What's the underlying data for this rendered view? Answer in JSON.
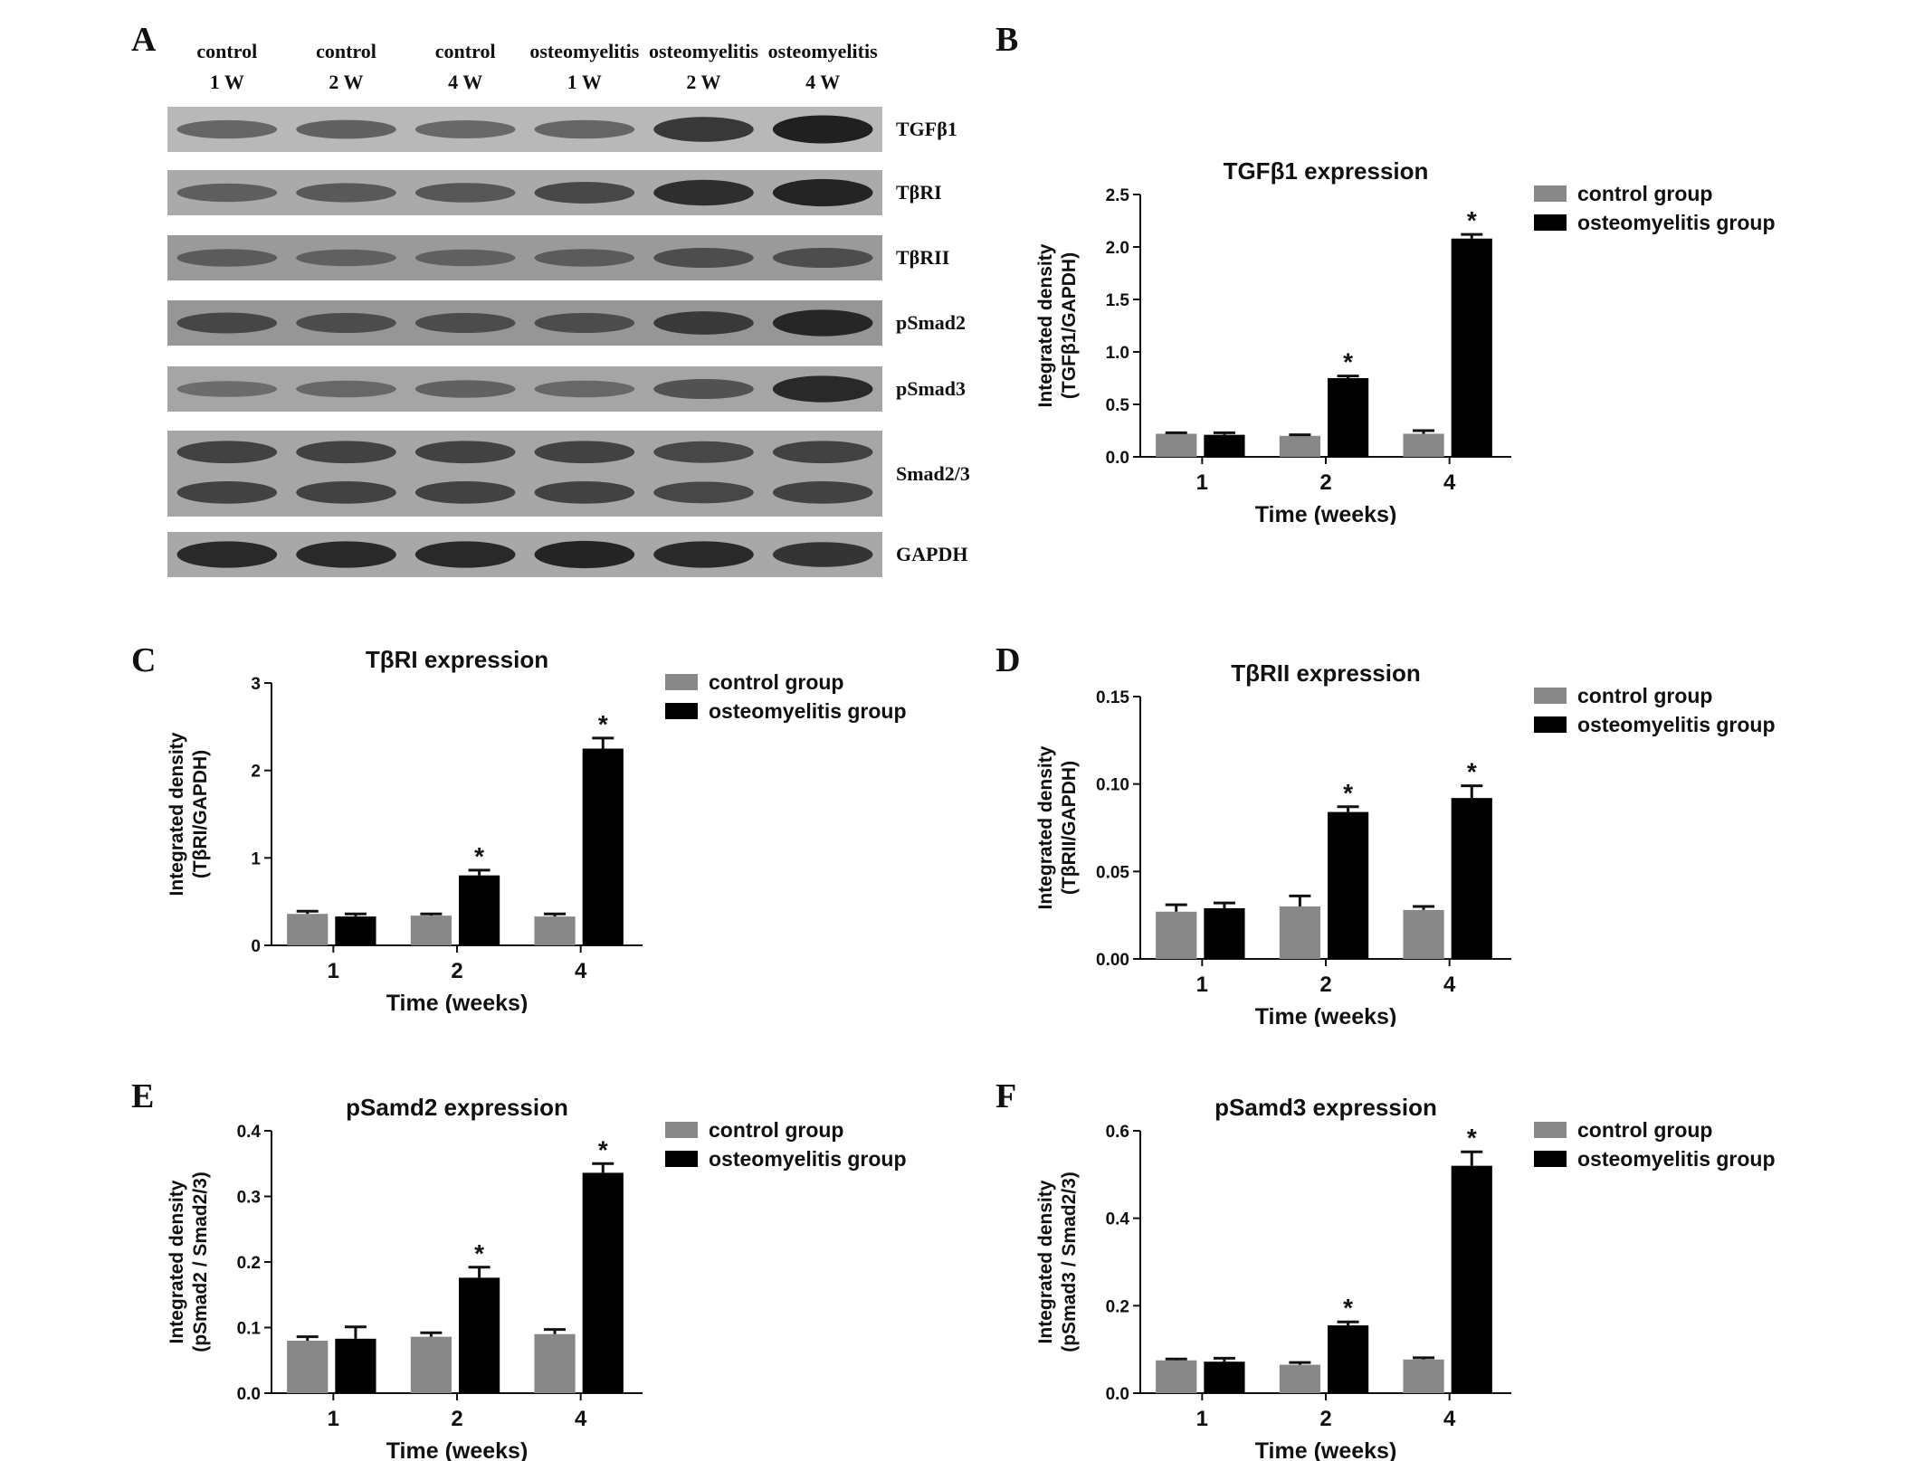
{
  "panels": {
    "a": "A",
    "b": "B",
    "c": "C",
    "d": "D",
    "e": "E",
    "f": "F"
  },
  "blot": {
    "lanes": [
      {
        "line1": "control",
        "line2": "1 W"
      },
      {
        "line1": "control",
        "line2": "2 W"
      },
      {
        "line1": "control",
        "line2": "4 W"
      },
      {
        "line1": "osteomyelitis",
        "line2": "1 W"
      },
      {
        "line1": "osteomyelitis",
        "line2": "2 W"
      },
      {
        "line1": "osteomyelitis",
        "line2": "4 W"
      }
    ],
    "bands": [
      {
        "label": "TGFβ1",
        "bg": "#b8b8b8",
        "intensities": [
          0.35,
          0.38,
          0.33,
          0.36,
          0.75,
          0.95
        ],
        "rows": 1
      },
      {
        "label": "TβRI",
        "bg": "#aaaaaa",
        "intensities": [
          0.35,
          0.4,
          0.42,
          0.55,
          0.8,
          0.9
        ],
        "rows": 1
      },
      {
        "label": "TβRII",
        "bg": "#9a9a9a",
        "intensities": [
          0.3,
          0.25,
          0.25,
          0.3,
          0.45,
          0.45
        ],
        "rows": 1
      },
      {
        "label": "pSmad2",
        "bg": "#969696",
        "intensities": [
          0.5,
          0.45,
          0.45,
          0.45,
          0.65,
          0.85
        ],
        "rows": 1
      },
      {
        "label": "pSmad3",
        "bg": "#a5a5a5",
        "intensities": [
          0.2,
          0.25,
          0.3,
          0.25,
          0.45,
          0.85
        ],
        "rows": 1
      },
      {
        "label": "Smad2/3",
        "bg": "#a6a6a6",
        "intensities": [
          0.6,
          0.6,
          0.6,
          0.6,
          0.55,
          0.6
        ],
        "rows": 2
      },
      {
        "label": "GAPDH",
        "bg": "#a8a8a8",
        "intensities": [
          0.85,
          0.85,
          0.85,
          0.9,
          0.85,
          0.75
        ],
        "rows": 1
      }
    ]
  },
  "colors": {
    "control": "#888888",
    "osteomyelitis": "#000000"
  },
  "chart_data": [
    {
      "id": "B",
      "type": "bar",
      "title": "TGFβ1 expression",
      "xlabel": "Time (weeks)",
      "ylabel_line1": "Integrated density",
      "ylabel_line2": "(TGFβ1/GAPDH)",
      "categories": [
        "1",
        "2",
        "4"
      ],
      "ylim": [
        0,
        2.5
      ],
      "yticks": [
        "0.0",
        "0.5",
        "1.0",
        "1.5",
        "2.0",
        "2.5"
      ],
      "series": [
        {
          "name": "control group",
          "values": [
            0.22,
            0.2,
            0.22
          ],
          "errors": [
            0.01,
            0.01,
            0.03
          ]
        },
        {
          "name": "osteomyelitis group",
          "values": [
            0.21,
            0.75,
            2.08
          ],
          "errors": [
            0.02,
            0.02,
            0.04
          ]
        }
      ],
      "significance": [
        "",
        "*",
        "*"
      ],
      "legend": "top-right"
    },
    {
      "id": "C",
      "type": "bar",
      "title": "TβRI expression",
      "xlabel": "Time (weeks)",
      "ylabel_line1": "Integrated density",
      "ylabel_line2": "(TβRI/GAPDH)",
      "categories": [
        "1",
        "2",
        "4"
      ],
      "ylim": [
        0,
        3
      ],
      "yticks": [
        "0",
        "1",
        "2",
        "3"
      ],
      "series": [
        {
          "name": "control group",
          "values": [
            0.36,
            0.34,
            0.33
          ],
          "errors": [
            0.03,
            0.02,
            0.03
          ]
        },
        {
          "name": "osteomyelitis group",
          "values": [
            0.33,
            0.8,
            2.25
          ],
          "errors": [
            0.03,
            0.06,
            0.12
          ]
        }
      ],
      "significance": [
        "",
        "*",
        "*"
      ],
      "legend": "top-right"
    },
    {
      "id": "D",
      "type": "bar",
      "title": "TβRII expression",
      "xlabel": "Time (weeks)",
      "ylabel_line1": "Integrated density",
      "ylabel_line2": "(TβRII/GAPDH)",
      "categories": [
        "1",
        "2",
        "4"
      ],
      "ylim": [
        0,
        0.15
      ],
      "yticks": [
        "0.00",
        "0.05",
        "0.10",
        "0.15"
      ],
      "series": [
        {
          "name": "control group",
          "values": [
            0.027,
            0.03,
            0.028
          ],
          "errors": [
            0.004,
            0.006,
            0.002
          ]
        },
        {
          "name": "osteomyelitis group",
          "values": [
            0.029,
            0.084,
            0.092
          ],
          "errors": [
            0.003,
            0.003,
            0.007
          ]
        }
      ],
      "significance": [
        "",
        "*",
        "*"
      ],
      "legend": "top-right"
    },
    {
      "id": "E",
      "type": "bar",
      "title": "pSamd2 expression",
      "xlabel": "Time (weeks)",
      "ylabel_line1": "Integrated density",
      "ylabel_line2": "(pSmad2 / Smad2/3)",
      "categories": [
        "1",
        "2",
        "4"
      ],
      "ylim": [
        0,
        0.4
      ],
      "yticks": [
        "0.0",
        "0.1",
        "0.2",
        "0.3",
        "0.4"
      ],
      "series": [
        {
          "name": "control group",
          "values": [
            0.08,
            0.086,
            0.09
          ],
          "errors": [
            0.006,
            0.006,
            0.007
          ]
        },
        {
          "name": "osteomyelitis group",
          "values": [
            0.083,
            0.176,
            0.336
          ],
          "errors": [
            0.018,
            0.016,
            0.014
          ]
        }
      ],
      "significance": [
        "",
        "*",
        "*"
      ],
      "legend": "top-right"
    },
    {
      "id": "F",
      "type": "bar",
      "title": "pSamd3 expression",
      "xlabel": "Time (weeks)",
      "ylabel_line1": "Integrated density",
      "ylabel_line2": "(pSmad3 / Smad2/3)",
      "categories": [
        "1",
        "2",
        "4"
      ],
      "ylim": [
        0,
        0.6
      ],
      "yticks": [
        "0.0",
        "0.2",
        "0.4",
        "0.6"
      ],
      "series": [
        {
          "name": "control group",
          "values": [
            0.075,
            0.065,
            0.077
          ],
          "errors": [
            0.003,
            0.005,
            0.004
          ]
        },
        {
          "name": "osteomyelitis group",
          "values": [
            0.072,
            0.155,
            0.52
          ],
          "errors": [
            0.008,
            0.008,
            0.032
          ]
        }
      ],
      "significance": [
        "",
        "*",
        "*"
      ],
      "legend": "top-right"
    }
  ]
}
